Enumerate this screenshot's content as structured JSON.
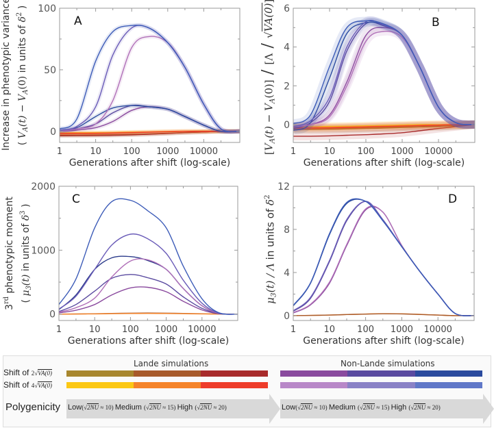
{
  "figure": {
    "xlabel": "Generations after shift (log-scale)"
  },
  "ylabels": {
    "A": {
      "line1": "Increase in phenotypic variance",
      "line2": [
        {
          "t": "( "
        },
        {
          "t": "V",
          "f": "i"
        },
        {
          "t": "A",
          "f": "sub"
        },
        {
          "t": "(t)",
          "f": "i"
        },
        {
          "t": " − "
        },
        {
          "t": "V",
          "f": "i"
        },
        {
          "t": "A",
          "f": "sub"
        },
        {
          "t": "(0)",
          "f": "m"
        },
        {
          "t": "  in units of  "
        },
        {
          "t": "δ",
          "f": "i"
        },
        {
          "t": "2",
          "f": "sup"
        },
        {
          "t": " )"
        }
      ]
    },
    "B": {
      "line1": [
        {
          "t": "[",
          "f": "m"
        },
        {
          "t": "V",
          "f": "i"
        },
        {
          "t": "A",
          "f": "sub"
        },
        {
          "t": "(t)",
          "f": "i"
        },
        {
          "t": " − "
        },
        {
          "t": "V",
          "f": "i"
        },
        {
          "t": "A",
          "f": "sub"
        },
        {
          "t": "(0)]",
          "f": "m"
        },
        {
          "t": " / ",
          "f": "big"
        },
        {
          "t": "[Λ",
          "f": "m"
        },
        {
          "t": " / ",
          "f": "big"
        },
        {
          "t": "√",
          "f": "m"
        },
        {
          "t": "VA(0)",
          "f": "ov"
        },
        {
          "t": "]",
          "f": "m"
        },
        {
          "t": "2",
          "f": "sup"
        }
      ]
    },
    "C": {
      "line1": [
        {
          "t": "3"
        },
        {
          "t": "rd",
          "f": "sup"
        },
        {
          "t": "  phenotypic moment"
        }
      ],
      "line2": [
        {
          "t": "( "
        },
        {
          "t": "μ",
          "f": "i"
        },
        {
          "t": "3",
          "f": "sub"
        },
        {
          "t": "(t)",
          "f": "i"
        },
        {
          "t": "  in units of  "
        },
        {
          "t": "δ",
          "f": "i"
        },
        {
          "t": "3",
          "f": "sup"
        },
        {
          "t": " )"
        }
      ]
    },
    "D": {
      "line1": [
        {
          "t": "μ",
          "f": "i"
        },
        {
          "t": "3",
          "f": "sub"
        },
        {
          "t": "(t) / Λ",
          "f": "i"
        },
        {
          "t": "   in units of  "
        },
        {
          "t": "δ",
          "f": "i"
        },
        {
          "t": "2",
          "f": "sup"
        }
      ]
    }
  },
  "chart_data": [
    {
      "panel": "A",
      "type": "line",
      "xscale": "log",
      "xlabel": "Generations after shift (log-scale)",
      "xlim": [
        1,
        100000
      ],
      "ylim": [
        -9,
        100
      ],
      "xticks": [
        1,
        10,
        100,
        1000,
        10000
      ],
      "yticks": [
        0,
        50,
        100
      ],
      "confidence_bands": true,
      "x": [
        1,
        3,
        10,
        30,
        100,
        300,
        1000,
        3000,
        10000,
        30000,
        100000
      ],
      "series": [
        {
          "color": "#a8872e",
          "values": [
            -3,
            -3,
            -2.9,
            -2.7,
            -2.4,
            -2,
            -1.5,
            -1,
            -0.5,
            0,
            0
          ]
        },
        {
          "color": "#a85a2a",
          "values": [
            -3.3,
            -3.2,
            -3.1,
            -2.9,
            -2.6,
            -2.2,
            -1.6,
            -1,
            -0.5,
            0,
            0
          ]
        },
        {
          "color": "#a82a2a",
          "values": [
            -3.6,
            -3.5,
            -3.4,
            -3.2,
            -2.8,
            -2.3,
            -1.7,
            -1.1,
            -0.5,
            0,
            0
          ]
        },
        {
          "color": "#f8c81a",
          "values": [
            -1,
            -1,
            -0.9,
            -0.8,
            -0.5,
            -0.3,
            0,
            0.2,
            0.2,
            0,
            0
          ]
        },
        {
          "color": "#f5842a",
          "values": [
            -1.5,
            -1.4,
            -1.3,
            -1.1,
            -0.8,
            -0.5,
            -0.2,
            0,
            0,
            0,
            0
          ]
        },
        {
          "color": "#ee3c2a",
          "values": [
            -2,
            -1.9,
            -1.8,
            -1.5,
            -1.1,
            -0.7,
            -0.3,
            0,
            0,
            0,
            0
          ]
        },
        {
          "color": "#8a4a9e",
          "values": [
            0,
            1,
            3,
            8,
            17,
            20,
            18,
            12,
            5,
            0,
            0
          ]
        },
        {
          "color": "#5a4aa0",
          "values": [
            0,
            2,
            6,
            15,
            21,
            20,
            18,
            12,
            5,
            0,
            0
          ]
        },
        {
          "color": "#2a4a9e",
          "values": [
            1,
            3,
            12,
            19,
            21,
            20,
            18,
            12,
            5,
            0,
            0
          ]
        },
        {
          "color": "#b070b8",
          "values": [
            0,
            2,
            6,
            25,
            68,
            77,
            72,
            52,
            22,
            2,
            0
          ]
        },
        {
          "color": "#6a5cb8",
          "values": [
            1,
            4,
            20,
            62,
            84,
            84,
            72,
            52,
            22,
            2,
            0
          ]
        },
        {
          "color": "#3d5cb8",
          "values": [
            2,
            10,
            57,
            81,
            86,
            84,
            72,
            52,
            22,
            2,
            0
          ]
        }
      ]
    },
    {
      "panel": "B",
      "type": "line",
      "xscale": "log",
      "xlabel": "Generations after shift (log-scale)",
      "xlim": [
        1,
        100000
      ],
      "ylim": [
        -0.92,
        6
      ],
      "xticks": [
        1,
        10,
        100,
        1000,
        10000
      ],
      "yticks": [
        0,
        2,
        4,
        6
      ],
      "confidence_bands": true,
      "x": [
        1,
        3,
        10,
        30,
        100,
        300,
        1000,
        3000,
        10000,
        30000,
        100000
      ],
      "series": [
        {
          "color": "#a8872e",
          "values": [
            -0.2,
            -0.2,
            -0.19,
            -0.18,
            -0.16,
            -0.14,
            -0.12,
            -0.1,
            -0.08,
            -0.05,
            0
          ]
        },
        {
          "color": "#a85a2a",
          "values": [
            -0.25,
            -0.25,
            -0.24,
            -0.22,
            -0.2,
            -0.18,
            -0.15,
            -0.12,
            -0.1,
            -0.05,
            0
          ]
        },
        {
          "color": "#a82a2a",
          "values": [
            -0.6,
            -0.6,
            -0.58,
            -0.55,
            -0.52,
            -0.48,
            -0.42,
            -0.32,
            -0.2,
            -0.1,
            0
          ]
        },
        {
          "color": "#f8c81a",
          "values": [
            -0.1,
            -0.1,
            -0.09,
            -0.08,
            -0.06,
            -0.04,
            -0.02,
            0,
            0,
            0,
            0
          ]
        },
        {
          "color": "#f5842a",
          "values": [
            -0.15,
            -0.15,
            -0.14,
            -0.12,
            -0.1,
            -0.08,
            -0.06,
            -0.04,
            -0.02,
            0,
            0
          ]
        },
        {
          "color": "#ee3c2a",
          "values": [
            -0.18,
            -0.18,
            -0.17,
            -0.15,
            -0.13,
            -0.1,
            -0.08,
            -0.05,
            -0.03,
            0,
            0
          ]
        },
        {
          "color": "#8a4a9e",
          "values": [
            -0.1,
            0,
            0.5,
            2.2,
            4.6,
            5.0,
            4.6,
            3.0,
            0.9,
            0.1,
            0
          ]
        },
        {
          "color": "#5a4aa0",
          "values": [
            -0.2,
            0.1,
            1.2,
            3.8,
            5.2,
            5.1,
            4.6,
            3.0,
            0.9,
            0.1,
            0
          ]
        },
        {
          "color": "#2a4a9e",
          "values": [
            -0.3,
            0.1,
            2.4,
            4.7,
            5.25,
            5.15,
            4.6,
            3.0,
            0.9,
            0.1,
            0
          ]
        },
        {
          "color": "#b070b8",
          "values": [
            -0.1,
            0,
            0.4,
            2.0,
            4.3,
            4.8,
            4.5,
            3.0,
            0.9,
            0.1,
            0
          ]
        },
        {
          "color": "#6a5cb8",
          "values": [
            -0.1,
            0.2,
            1.4,
            4.0,
            5.3,
            5.15,
            4.6,
            3.0,
            0.9,
            0.1,
            0
          ]
        },
        {
          "color": "#3d5cb8",
          "values": [
            0.05,
            0.5,
            3.0,
            5.0,
            5.35,
            5.2,
            4.6,
            3.0,
            0.9,
            0.1,
            0
          ]
        }
      ]
    },
    {
      "panel": "C",
      "type": "line",
      "xscale": "log",
      "xlabel": "Generations after shift (log-scale)",
      "xlim": [
        1,
        100000
      ],
      "ylim": [
        -100,
        2000
      ],
      "xticks": [
        1,
        10,
        100,
        1000,
        10000
      ],
      "yticks": [
        0,
        1000,
        2000
      ],
      "confidence_bands": false,
      "x": [
        1,
        3,
        10,
        30,
        100,
        300,
        1000,
        3000,
        10000,
        30000,
        100000
      ],
      "series": [
        {
          "color": "#a85a2a",
          "values": [
            0,
            2,
            5,
            10,
            15,
            17,
            15,
            10,
            5,
            1,
            0
          ]
        },
        {
          "color": "#f5842a",
          "values": [
            0,
            1,
            3,
            6,
            9,
            10,
            9,
            6,
            3,
            1,
            0
          ]
        },
        {
          "color": "#8a4a9e",
          "values": [
            20,
            60,
            150,
            300,
            410,
            420,
            350,
            200,
            65,
            5,
            0
          ]
        },
        {
          "color": "#5a4aa0",
          "values": [
            40,
            150,
            360,
            560,
            620,
            570,
            470,
            270,
            90,
            8,
            0
          ]
        },
        {
          "color": "#2a3a8a",
          "values": [
            70,
            300,
            700,
            880,
            900,
            840,
            700,
            400,
            130,
            10,
            0
          ]
        },
        {
          "color": "#b070b8",
          "values": [
            30,
            100,
            250,
            580,
            830,
            850,
            700,
            400,
            130,
            10,
            0
          ]
        },
        {
          "color": "#6a5cb8",
          "values": [
            80,
            280,
            700,
            1080,
            1250,
            1180,
            950,
            530,
            170,
            15,
            0
          ]
        },
        {
          "color": "#3d5cb8",
          "values": [
            150,
            550,
            1350,
            1760,
            1780,
            1620,
            1350,
            750,
            240,
            20,
            0
          ]
        }
      ]
    },
    {
      "panel": "D",
      "type": "line",
      "xscale": "log",
      "xlabel": "Generations after shift (log-scale)",
      "xlim": [
        1,
        100000
      ],
      "ylim": [
        -0.45,
        12
      ],
      "xticks": [
        1,
        10,
        100,
        1000,
        10000
      ],
      "yticks": [
        0,
        4,
        8,
        12
      ],
      "confidence_bands": false,
      "x": [
        1,
        3,
        10,
        30,
        100,
        300,
        1000,
        3000,
        10000,
        30000,
        100000
      ],
      "series": [
        {
          "color": "#f5842a",
          "values": [
            0,
            0.02,
            0.05,
            0.1,
            0.15,
            0.18,
            0.17,
            0.12,
            0.05,
            0,
            0
          ]
        },
        {
          "color": "#a85a2a",
          "values": [
            0,
            0.02,
            0.05,
            0.1,
            0.14,
            0.17,
            0.16,
            0.11,
            0.05,
            0,
            0
          ]
        },
        {
          "color": "#8a4a9e",
          "values": [
            0.25,
            1.0,
            3.0,
            6.5,
            9.8,
            9.6,
            6.5,
            4.2,
            2.0,
            0.2,
            0
          ]
        },
        {
          "color": "#b070b8",
          "values": [
            0.28,
            1.05,
            3.1,
            6.6,
            9.9,
            9.6,
            6.5,
            4.2,
            2.0,
            0.2,
            0
          ]
        },
        {
          "color": "#5a4aa0",
          "values": [
            0.4,
            1.6,
            5.0,
            8.8,
            10.6,
            8.9,
            6.4,
            4.2,
            2.0,
            0.2,
            0
          ]
        },
        {
          "color": "#6a5cb8",
          "values": [
            0.45,
            1.7,
            5.1,
            8.9,
            10.6,
            8.9,
            6.4,
            4.2,
            2.0,
            0.2,
            0
          ]
        },
        {
          "color": "#2a4a9e",
          "values": [
            0.9,
            3.0,
            7.5,
            10.4,
            10.6,
            8.8,
            6.4,
            4.2,
            2.0,
            0.2,
            0
          ]
        },
        {
          "color": "#3d5cb8",
          "values": [
            0.95,
            3.05,
            7.6,
            10.5,
            10.6,
            8.8,
            6.4,
            4.2,
            2.0,
            0.2,
            0
          ]
        }
      ]
    }
  ],
  "legend": {
    "lande_title": "Lande simulations",
    "nonlande_title": "Non-Lande simulations",
    "shift2": [
      {
        "t": "Shift of "
      },
      {
        "t": "2√",
        "f": "m"
      },
      {
        "t": "VA(0)",
        "f": "ov"
      }
    ],
    "shift4": [
      {
        "t": "Shift of "
      },
      {
        "t": "4√",
        "f": "m"
      },
      {
        "t": "VA(0)",
        "f": "ov"
      }
    ],
    "lande_shift2_colors": [
      "#a8872e",
      "#a85a2a",
      "#a82a2a"
    ],
    "lande_shift4_colors": [
      "#fcc814",
      "#f5842a",
      "#ee3c2a"
    ],
    "nonlande_shift2_colors": [
      "#8a4a9e",
      "#5a4aa0",
      "#2a4a9e"
    ],
    "nonlande_shift4_colors": [
      "#b888c8",
      "#8a82c6",
      "#6078c8"
    ],
    "polygenicity_label": "Polygenicity",
    "polygenicity": [
      {
        "t": "Low"
      },
      {
        "t": "(√",
        "f": "m"
      },
      {
        "t": "2NU",
        "f": "ov"
      },
      {
        "t": " ≈ 10) ",
        "f": "m"
      },
      {
        "t": " Medium "
      },
      {
        "t": "(√",
        "f": "m"
      },
      {
        "t": "2NU",
        "f": "ov"
      },
      {
        "t": " ≈ 15) ",
        "f": "m"
      },
      {
        "t": " High "
      },
      {
        "t": "(√",
        "f": "m"
      },
      {
        "t": "2NU",
        "f": "ov"
      },
      {
        "t": " ≈ 20)",
        "f": "m"
      }
    ]
  }
}
